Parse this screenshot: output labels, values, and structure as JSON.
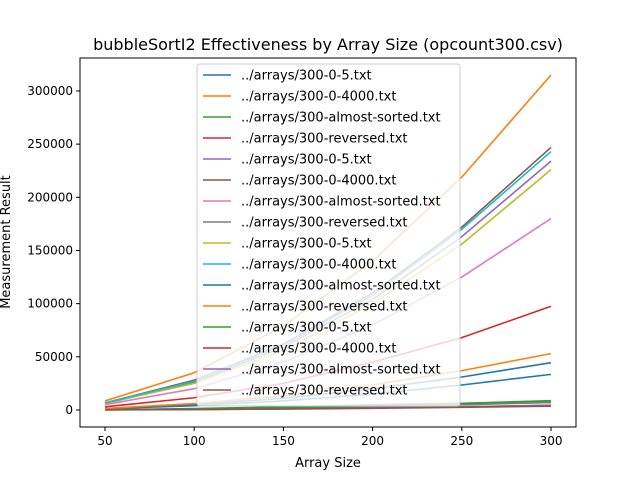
{
  "chart_data": {
    "type": "line",
    "title": "bubbleSortI2 Effectiveness by Array Size (opcount300.csv)",
    "xlabel": "Array Size",
    "ylabel": "Measurement Result",
    "xlim": [
      36,
      314
    ],
    "ylim": [
      -16000,
      331000
    ],
    "xticks": [
      50,
      100,
      150,
      200,
      250,
      300
    ],
    "yticks": [
      0,
      50000,
      100000,
      150000,
      200000,
      250000,
      300000
    ],
    "x": [
      50,
      100,
      150,
      200,
      250,
      300
    ],
    "legend_position": "upper center",
    "grid": false,
    "series": [
      {
        "name": "../arrays/300-0-5.txt",
        "color": "#1f77b4",
        "values": [
          1200,
          4000,
          8500,
          15000,
          23500,
          33500
        ]
      },
      {
        "name": "../arrays/300-0-4000.txt",
        "color": "#ff7f0e",
        "values": [
          8500,
          35000,
          79000,
          140000,
          219000,
          315000
        ]
      },
      {
        "name": "../arrays/300-almost-sorted.txt",
        "color": "#2ca02c",
        "values": [
          300,
          1300,
          2900,
          5000,
          6300,
          8000
        ]
      },
      {
        "name": "../arrays/300-reversed.txt",
        "color": "#d62728",
        "values": [
          3000,
          11500,
          25000,
          45000,
          68000,
          97500
        ]
      },
      {
        "name": "../arrays/300-0-5.txt",
        "color": "#9467bd",
        "values": [
          6000,
          26000,
          59000,
          104000,
          163000,
          234000
        ]
      },
      {
        "name": "../arrays/300-0-4000.txt",
        "color": "#8c564b",
        "values": [
          6700,
          28000,
          62000,
          110000,
          172000,
          247000
        ]
      },
      {
        "name": "../arrays/300-almost-sorted.txt",
        "color": "#e377c2",
        "values": [
          5000,
          20000,
          45000,
          80000,
          125000,
          180000
        ]
      },
      {
        "name": "../arrays/300-reversed.txt",
        "color": "#7f7f7f",
        "values": [
          200,
          800,
          1800,
          3200,
          5000,
          7000
        ]
      },
      {
        "name": "../arrays/300-0-5.txt",
        "color": "#bcbd22",
        "values": [
          6300,
          25000,
          56000,
          100000,
          156000,
          226000
        ]
      },
      {
        "name": "../arrays/300-0-4000.txt",
        "color": "#17becf",
        "values": [
          6600,
          27000,
          61000,
          108000,
          170000,
          243000
        ]
      },
      {
        "name": "../arrays/300-almost-sorted.txt",
        "color": "#1f77b4",
        "values": [
          1300,
          5000,
          11000,
          20000,
          31000,
          44500
        ]
      },
      {
        "name": "../arrays/300-reversed.txt",
        "color": "#ff7f0e",
        "values": [
          1500,
          6000,
          13300,
          23600,
          37000,
          53000
        ]
      },
      {
        "name": "../arrays/300-0-5.txt",
        "color": "#2ca02c",
        "values": [
          250,
          1000,
          2300,
          4000,
          6200,
          8800
        ]
      },
      {
        "name": "../arrays/300-0-4000.txt",
        "color": "#d62728",
        "values": [
          120,
          500,
          1100,
          2000,
          3000,
          4300
        ]
      },
      {
        "name": "../arrays/300-almost-sorted.txt",
        "color": "#9467bd",
        "values": [
          130,
          520,
          1150,
          2050,
          3150,
          4500
        ]
      },
      {
        "name": "../arrays/300-reversed.txt",
        "color": "#8c564b",
        "values": [
          100,
          400,
          900,
          1600,
          2500,
          3600
        ]
      }
    ]
  }
}
